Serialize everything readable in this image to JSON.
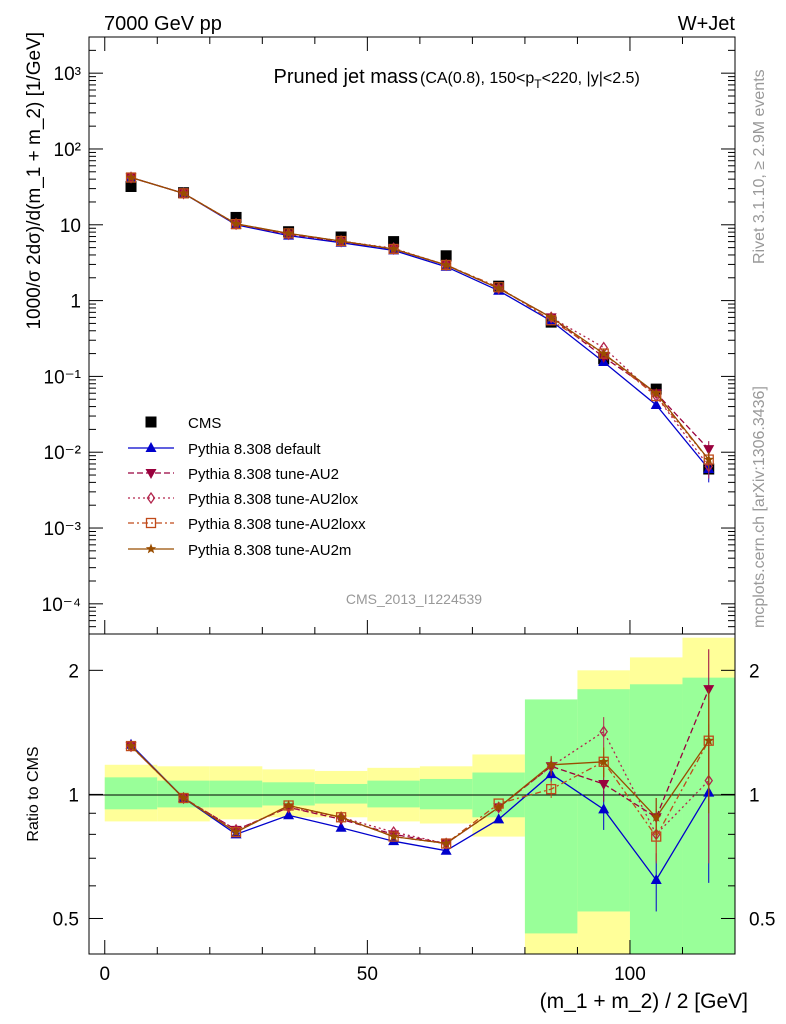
{
  "header": {
    "energy_label": "7000 GeV pp",
    "process_label": "W+Jet",
    "side_rivet": "Rivet 3.1.10, ≥ 2.9M events",
    "side_mcplots": "mcplots.cern.ch [arXiv:1306.3436]"
  },
  "chart_data": [
    {
      "type": "line",
      "panel": "main",
      "title_main": "Pruned jet mass",
      "title_sub": "(CA(0.8), 150<p",
      "title_sub_T": "T",
      "title_sub_end": "<220, |y|<2.5)",
      "ylabel": "1000/σ 2dσ)/d(m_1 + m_2) [1/GeV]",
      "yscale": "log",
      "ylim": [
        4e-05,
        3000
      ],
      "xlim": [
        -3,
        120
      ],
      "watermark": "CMS_2013_I1224539",
      "y_tick_labels": [
        "10⁻⁴",
        "10⁻³",
        "10⁻²",
        "10⁻¹",
        "1",
        "10",
        "10²",
        "10³"
      ],
      "x": [
        5,
        15,
        25,
        35,
        45,
        55,
        65,
        75,
        85,
        95,
        105,
        115
      ],
      "series": [
        {
          "name": "CMS",
          "color": "#000000",
          "marker": "square",
          "dash": "none",
          "values": [
            32,
            26.5,
            12.5,
            8.1,
            6.9,
            6.0,
            3.9,
            1.55,
            0.52,
            0.17,
            0.068,
            0.006
          ]
        },
        {
          "name": "Pythia 8.308 default",
          "color": "#0000cc",
          "marker": "triangle-up",
          "dash": "none",
          "values": [
            42,
            26,
            10,
            7.2,
            5.8,
            4.6,
            2.8,
            1.35,
            0.54,
            0.155,
            0.042,
            0.006
          ],
          "err": [
            0,
            0,
            0,
            0,
            0,
            0,
            0,
            0,
            0,
            0,
            0,
            0.002
          ]
        },
        {
          "name": "Pythia 8.308 tune-AU2",
          "color": "#99003d",
          "marker": "triangle-down",
          "dash": "6,3",
          "values": [
            42,
            26,
            10.2,
            7.5,
            6.0,
            4.8,
            2.95,
            1.45,
            0.6,
            0.18,
            0.06,
            0.011
          ],
          "err": [
            0,
            0,
            0,
            0,
            0,
            0,
            0,
            0,
            0,
            0,
            0,
            0.003
          ]
        },
        {
          "name": "Pythia 8.308 tune-AU2lox",
          "color": "#b3264d",
          "marker": "diamond-open",
          "dash": "2,3",
          "values": [
            42,
            26,
            10.3,
            7.6,
            6.1,
            4.9,
            2.95,
            1.45,
            0.6,
            0.24,
            0.055,
            0.0065
          ],
          "err": [
            0,
            0,
            0,
            0,
            0,
            0,
            0,
            0,
            0,
            0,
            0,
            0.002
          ]
        },
        {
          "name": "Pythia 8.308 tune-AU2loxx",
          "color": "#c04a1a",
          "marker": "square-open",
          "dash": "6,3,2,3",
          "values": [
            42,
            26,
            10.2,
            7.7,
            6.1,
            4.8,
            2.95,
            1.5,
            0.55,
            0.2,
            0.055,
            0.008
          ],
          "err": [
            0,
            0,
            0,
            0,
            0,
            0,
            0,
            0,
            0,
            0,
            0,
            0.002
          ]
        },
        {
          "name": "Pythia 8.308 tune-AU2m",
          "color": "#994d00",
          "marker": "star",
          "dash": "none",
          "values": [
            42,
            26,
            10.3,
            7.7,
            6.1,
            4.8,
            2.95,
            1.45,
            0.6,
            0.2,
            0.06,
            0.008
          ],
          "err": [
            0,
            0,
            0,
            0,
            0,
            0,
            0,
            0,
            0,
            0,
            0,
            0.002
          ]
        }
      ]
    },
    {
      "type": "line",
      "panel": "ratio",
      "ylabel": "Ratio to CMS",
      "xlabel": "(m_1 + m_2) / 2 [GeV]",
      "yscale": "log",
      "ylim": [
        0.41,
        2.45
      ],
      "xlim": [
        -3,
        120
      ],
      "x_ticks": [
        0,
        50,
        100
      ],
      "y_ticks": [
        0.5,
        1,
        2
      ],
      "y_tick_labels": [
        "0.5",
        "1",
        "2"
      ],
      "bin_edges": [
        0,
        10,
        20,
        30,
        40,
        50,
        60,
        70,
        80,
        90,
        100,
        110,
        120
      ],
      "band_green": [
        [
          0.92,
          1.1
        ],
        [
          0.93,
          1.08
        ],
        [
          0.93,
          1.08
        ],
        [
          0.94,
          1.07
        ],
        [
          0.95,
          1.06
        ],
        [
          0.93,
          1.08
        ],
        [
          0.92,
          1.09
        ],
        [
          0.88,
          1.13
        ],
        [
          0.46,
          1.7
        ],
        [
          0.52,
          1.8
        ],
        [
          0.38,
          1.85
        ],
        [
          0.38,
          1.92
        ]
      ],
      "band_yellow": [
        [
          0.86,
          1.18
        ],
        [
          0.86,
          1.17
        ],
        [
          0.87,
          1.17
        ],
        [
          0.88,
          1.15
        ],
        [
          0.88,
          1.14
        ],
        [
          0.86,
          1.16
        ],
        [
          0.85,
          1.17
        ],
        [
          0.79,
          1.25
        ],
        [
          0.3,
          1.5
        ],
        [
          0.3,
          2.0
        ],
        [
          0.3,
          2.15
        ],
        [
          0.3,
          2.4
        ]
      ],
      "x": [
        5,
        15,
        25,
        35,
        45,
        55,
        65,
        75,
        85,
        95,
        105,
        115
      ],
      "series": [
        {
          "name": "Pythia 8.308 default",
          "color": "#0000cc",
          "marker": "triangle-up",
          "dash": "none",
          "values": [
            1.32,
            0.98,
            0.8,
            0.89,
            0.83,
            0.77,
            0.73,
            0.87,
            1.12,
            0.92,
            0.62,
            1.01
          ],
          "err": [
            0,
            0,
            0,
            0,
            0,
            0,
            0,
            0,
            0.05,
            0.1,
            0.1,
            0.4
          ]
        },
        {
          "name": "Pythia 8.308 tune-AU2",
          "color": "#99003d",
          "marker": "triangle-down",
          "dash": "6,3",
          "values": [
            1.31,
            0.98,
            0.82,
            0.93,
            0.87,
            0.8,
            0.76,
            0.93,
            1.17,
            1.06,
            0.88,
            1.8
          ],
          "err": [
            0,
            0,
            0,
            0,
            0,
            0,
            0,
            0,
            0.06,
            0.1,
            0.1,
            0.45
          ]
        },
        {
          "name": "Pythia 8.308 tune-AU2lox",
          "color": "#b3264d",
          "marker": "diamond-open",
          "dash": "2,3",
          "values": [
            1.31,
            0.98,
            0.82,
            0.93,
            0.88,
            0.81,
            0.76,
            0.93,
            1.17,
            1.42,
            0.8,
            1.08
          ],
          "err": [
            0,
            0,
            0,
            0,
            0,
            0,
            0,
            0,
            0.06,
            0.12,
            0.12,
            0.4
          ]
        },
        {
          "name": "Pythia 8.308 tune-AU2loxx",
          "color": "#c04a1a",
          "marker": "square-open",
          "dash": "6,3,2,3",
          "values": [
            1.31,
            0.98,
            0.81,
            0.94,
            0.88,
            0.79,
            0.76,
            0.95,
            1.03,
            1.2,
            0.79,
            1.35
          ],
          "err": [
            0,
            0,
            0,
            0,
            0,
            0,
            0,
            0,
            0.05,
            0.1,
            0.1,
            0.4
          ]
        },
        {
          "name": "Pythia 8.308 tune-AU2m",
          "color": "#994d00",
          "marker": "star",
          "dash": "none",
          "values": [
            1.31,
            0.98,
            0.81,
            0.94,
            0.88,
            0.79,
            0.76,
            0.93,
            1.18,
            1.2,
            0.88,
            1.35
          ],
          "err": [
            0,
            0,
            0,
            0,
            0,
            0,
            0,
            0,
            0.06,
            0.1,
            0.1,
            0.45
          ]
        }
      ]
    }
  ]
}
